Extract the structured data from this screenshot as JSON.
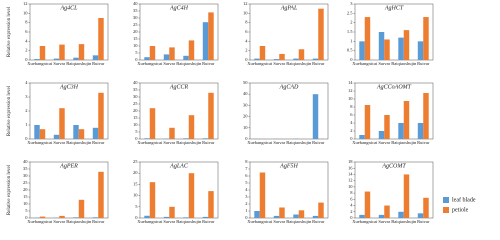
{
  "chart_data": [
    {
      "type": "bar",
      "title": "Ag4CL",
      "y_label": "Relative expression level",
      "categories": [
        "Xuebangnicai",
        "Sarvar",
        "Baiqiaoshujin",
        "Ruivar"
      ],
      "ylim": [
        0,
        12
      ],
      "yticks": [
        0,
        2,
        4,
        6,
        8,
        10,
        12
      ],
      "series": [
        {
          "name": "leaf blade",
          "color": "#5b9bd5",
          "values": [
            0.2,
            0.3,
            0.5,
            1.0
          ]
        },
        {
          "name": "petiole",
          "color": "#ed7d31",
          "values": [
            3.0,
            3.3,
            3.4,
            9.0
          ]
        }
      ]
    },
    {
      "type": "bar",
      "title": "AgC4H",
      "categories": [
        "Xuebangnicai",
        "Sarvar",
        "Baiqiaoshujin",
        "Ruivar"
      ],
      "ylim": [
        0,
        40
      ],
      "yticks": [
        0,
        5,
        10,
        15,
        20,
        25,
        30,
        35,
        40
      ],
      "series": [
        {
          "name": "leaf blade",
          "color": "#5b9bd5",
          "values": [
            2,
            4,
            3,
            27
          ]
        },
        {
          "name": "petiole",
          "color": "#ed7d31",
          "values": [
            10,
            9,
            14,
            34
          ]
        }
      ]
    },
    {
      "type": "bar",
      "title": "AgPAL",
      "categories": [
        "Xuebangnicai",
        "Sarvar",
        "Baiqiaoshujin",
        "Ruivar"
      ],
      "ylim": [
        0,
        12
      ],
      "yticks": [
        0,
        2,
        4,
        6,
        8,
        10,
        12
      ],
      "series": [
        {
          "name": "leaf blade",
          "color": "#5b9bd5",
          "values": [
            0.3,
            0.2,
            0.3,
            0.3
          ]
        },
        {
          "name": "petiole",
          "color": "#ed7d31",
          "values": [
            3.0,
            1.3,
            2.3,
            11.0
          ]
        }
      ]
    },
    {
      "type": "bar",
      "title": "AgHCT",
      "categories": [
        "Xuebangnicai",
        "Sarvar",
        "Baiqiaoshujin",
        "Ruivar"
      ],
      "ylim": [
        0,
        3
      ],
      "yticks": [
        0,
        0.5,
        1,
        1.5,
        2,
        2.5,
        3
      ],
      "series": [
        {
          "name": "leaf blade",
          "color": "#5b9bd5",
          "values": [
            1.0,
            1.5,
            1.2,
            1.0
          ]
        },
        {
          "name": "petiole",
          "color": "#ed7d31",
          "values": [
            2.3,
            1.1,
            1.6,
            2.3
          ]
        }
      ]
    },
    {
      "type": "bar",
      "title": "AgC3H",
      "y_label": "Relative expression level",
      "categories": [
        "Xuebangnicai",
        "Sarvar",
        "Baiqiaoshujin",
        "Ruivar"
      ],
      "ylim": [
        0,
        4
      ],
      "yticks": [
        0,
        1,
        2,
        3,
        4
      ],
      "series": [
        {
          "name": "leaf blade",
          "color": "#5b9bd5",
          "values": [
            1.0,
            0.3,
            1.0,
            0.8
          ]
        },
        {
          "name": "petiole",
          "color": "#ed7d31",
          "values": [
            0.7,
            2.2,
            0.7,
            3.3
          ]
        }
      ]
    },
    {
      "type": "bar",
      "title": "AgCCR",
      "categories": [
        "Xuebangnicai",
        "Sarvar",
        "Baiqiaoshujin",
        "Ruivar"
      ],
      "ylim": [
        0,
        40
      ],
      "yticks": [
        0,
        5,
        10,
        15,
        20,
        25,
        30,
        35,
        40
      ],
      "series": [
        {
          "name": "leaf blade",
          "color": "#5b9bd5",
          "values": [
            0.5,
            0.3,
            0.5,
            0.5
          ]
        },
        {
          "name": "petiole",
          "color": "#ed7d31",
          "values": [
            22,
            8,
            17,
            33
          ]
        }
      ]
    },
    {
      "type": "bar",
      "title": "AgCAD",
      "categories": [
        "Xuebangnicai",
        "Sarvar",
        "Baiqiaoshujin",
        "Ruivar"
      ],
      "ylim": [
        0,
        50
      ],
      "yticks": [
        0,
        10,
        20,
        30,
        40,
        50
      ],
      "series": [
        {
          "name": "leaf blade",
          "color": "#5b9bd5",
          "values": [
            0.3,
            0.2,
            0.3,
            40
          ]
        },
        {
          "name": "petiole",
          "color": "#ed7d31",
          "values": [
            0.1,
            0.1,
            0.1,
            0.2
          ]
        }
      ]
    },
    {
      "type": "bar",
      "title": "AgCCoAOMT",
      "categories": [
        "Xuebangnicai",
        "Sarvar",
        "Baiqiaoshujin",
        "Ruivar"
      ],
      "ylim": [
        0,
        14
      ],
      "yticks": [
        0,
        2,
        4,
        6,
        8,
        10,
        12,
        14
      ],
      "series": [
        {
          "name": "leaf blade",
          "color": "#5b9bd5",
          "values": [
            1,
            2,
            4,
            4
          ]
        },
        {
          "name": "petiole",
          "color": "#ed7d31",
          "values": [
            8.5,
            6,
            9.5,
            11.5
          ]
        }
      ]
    },
    {
      "type": "bar",
      "title": "AgPER",
      "y_label": "Relative expression level",
      "categories": [
        "Xuebangnicai",
        "Sarvar",
        "Baiqiaoshujin",
        "Ruivar"
      ],
      "ylim": [
        0,
        40
      ],
      "yticks": [
        0,
        5,
        10,
        15,
        20,
        25,
        30,
        35,
        40
      ],
      "series": [
        {
          "name": "leaf blade",
          "color": "#5b9bd5",
          "values": [
            0.3,
            0.2,
            0.5,
            0.5
          ]
        },
        {
          "name": "petiole",
          "color": "#ed7d31",
          "values": [
            1,
            1.5,
            13,
            33
          ]
        }
      ]
    },
    {
      "type": "bar",
      "title": "AgLAC",
      "categories": [
        "Xuebangnicai",
        "Sarvar",
        "Baiqiaoshujin",
        "Ruivar"
      ],
      "ylim": [
        0,
        25
      ],
      "yticks": [
        0,
        5,
        10,
        15,
        20,
        25
      ],
      "series": [
        {
          "name": "leaf blade",
          "color": "#5b9bd5",
          "values": [
            1,
            0.5,
            0.3,
            0.5
          ]
        },
        {
          "name": "petiole",
          "color": "#ed7d31",
          "values": [
            16,
            5,
            20,
            12
          ]
        }
      ]
    },
    {
      "type": "bar",
      "title": "AgF5H",
      "categories": [
        "Xuebangnicai",
        "Sarvar",
        "Baiqiaoshujin",
        "Ruivar"
      ],
      "ylim": [
        0,
        8
      ],
      "yticks": [
        0,
        1,
        2,
        3,
        4,
        5,
        6,
        7,
        8
      ],
      "series": [
        {
          "name": "leaf blade",
          "color": "#5b9bd5",
          "values": [
            1,
            0.3,
            0.5,
            0.3
          ]
        },
        {
          "name": "petiole",
          "color": "#ed7d31",
          "values": [
            6.5,
            1.5,
            1.1,
            2.2
          ]
        }
      ]
    },
    {
      "type": "bar",
      "title": "AgCOMT",
      "categories": [
        "Xuebangnicai",
        "Sarvar",
        "Baiqiaoshujin",
        "Ruivar"
      ],
      "ylim": [
        0,
        18
      ],
      "yticks": [
        0,
        2,
        4,
        6,
        8,
        10,
        12,
        14,
        16,
        18
      ],
      "series": [
        {
          "name": "leaf blade",
          "color": "#5b9bd5",
          "values": [
            1,
            1,
            2,
            1.5
          ]
        },
        {
          "name": "petiole",
          "color": "#ed7d31",
          "values": [
            8.5,
            4,
            14,
            6.5
          ]
        }
      ]
    }
  ]
}
